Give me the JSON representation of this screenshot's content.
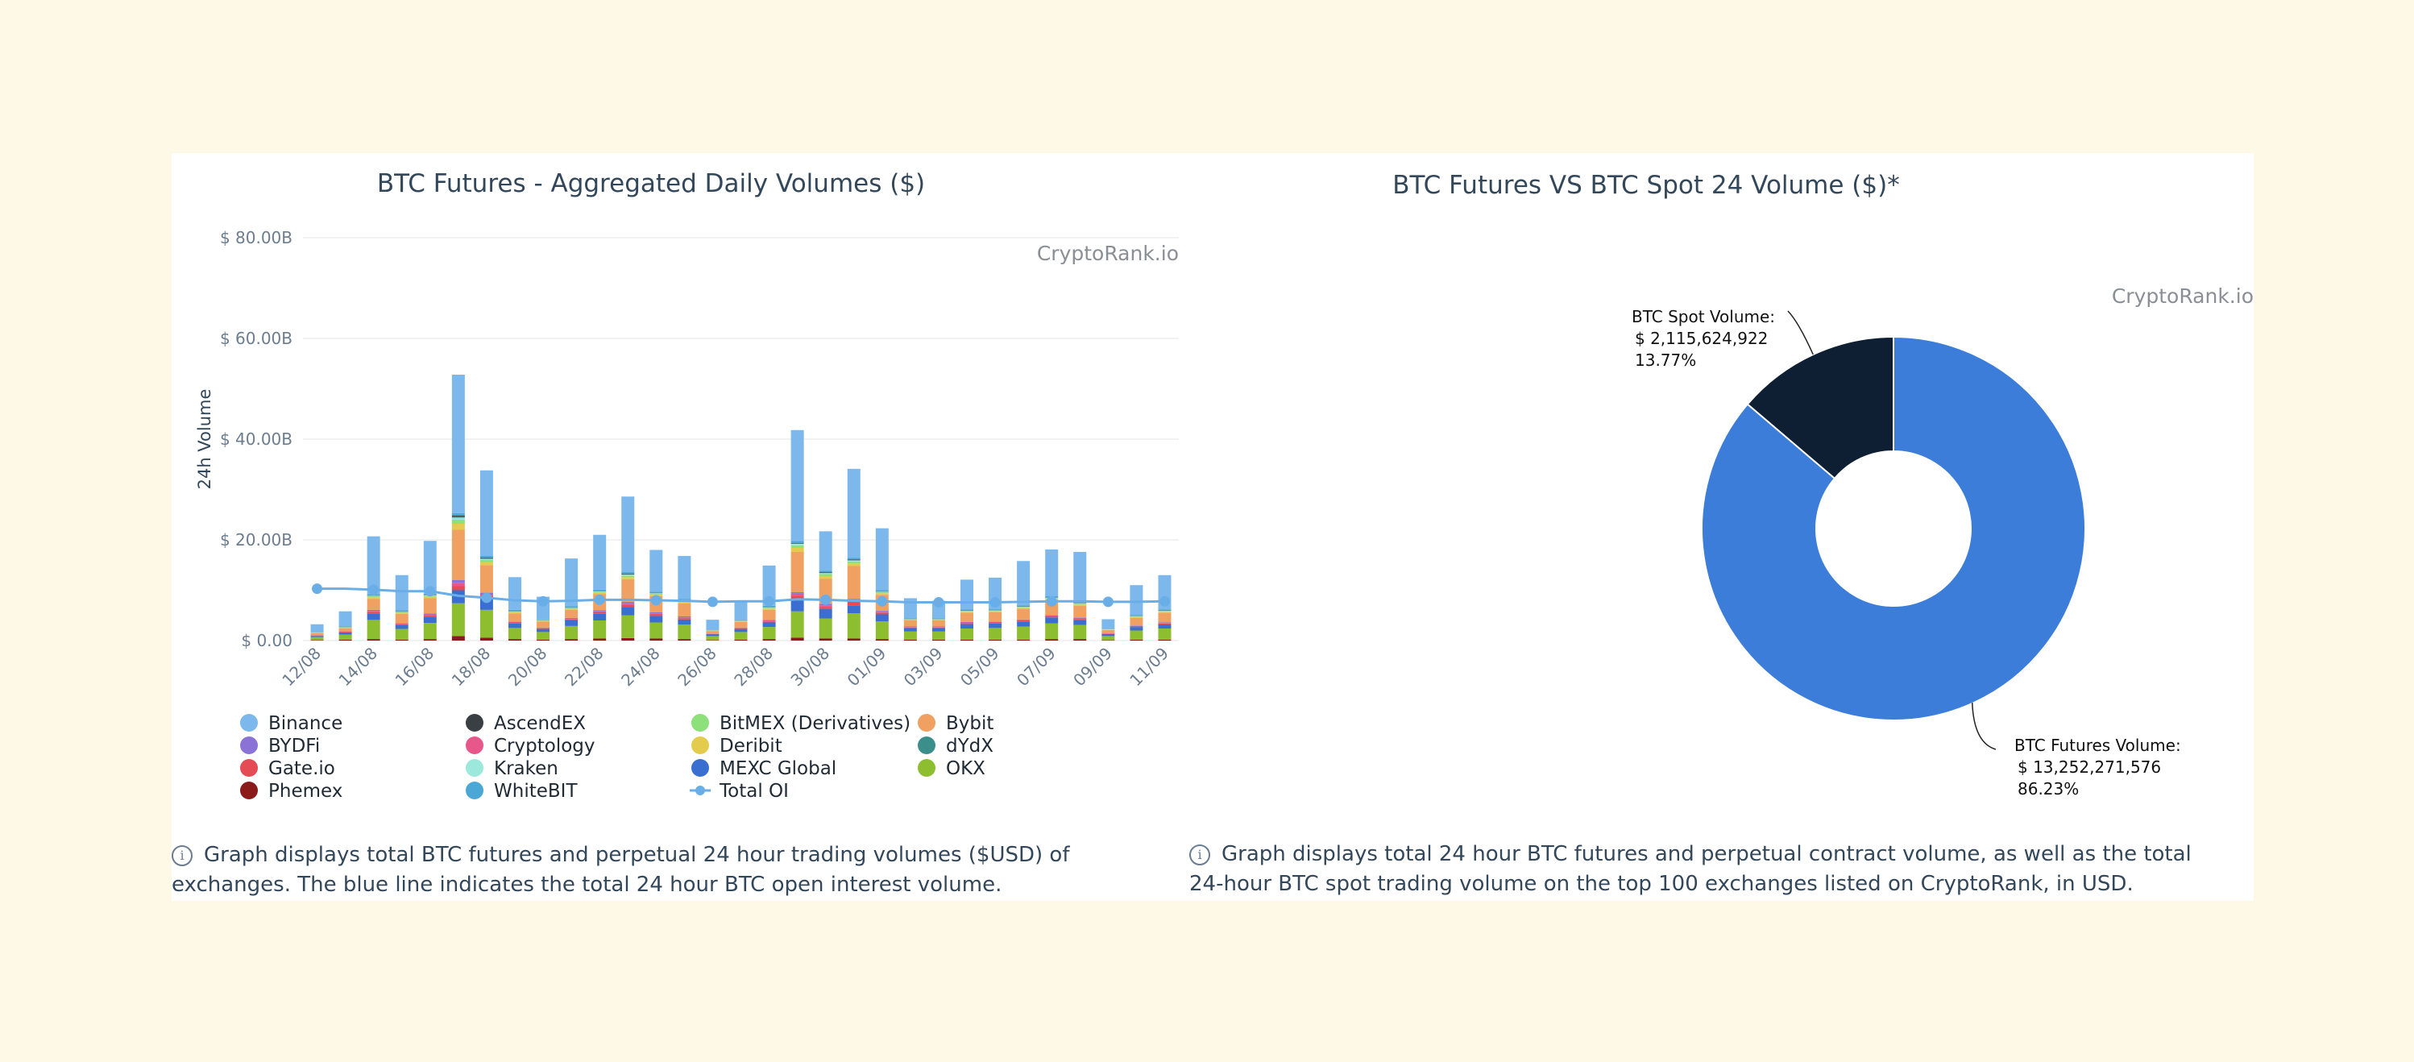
{
  "chart_data": [
    {
      "type": "bar",
      "stacked": true,
      "title": "BTC Futures - Aggregated Daily Volumes ($)",
      "ylabel": "24h Volume",
      "credit": "CryptoRank.io",
      "ylim": [
        0,
        80
      ],
      "yticks": [
        "$ 0.00",
        "$ 20.00B",
        "$ 40.00B",
        "$ 60.00B",
        "$ 80.00B"
      ],
      "grid": true,
      "categories": [
        "12/08",
        "13/08",
        "14/08",
        "15/08",
        "16/08",
        "17/08",
        "18/08",
        "19/08",
        "20/08",
        "21/08",
        "22/08",
        "23/08",
        "24/08",
        "25/08",
        "26/08",
        "27/08",
        "28/08",
        "29/08",
        "30/08",
        "31/08",
        "01/09",
        "02/09",
        "03/09",
        "04/09",
        "05/09",
        "06/09",
        "07/09",
        "08/09",
        "09/09",
        "10/09",
        "11/09"
      ],
      "xtick_labels": [
        "12/08",
        "14/08",
        "16/08",
        "18/08",
        "20/08",
        "22/08",
        "24/08",
        "26/08",
        "28/08",
        "30/08",
        "01/09",
        "03/09",
        "05/09",
        "07/09",
        "09/09",
        "11/09"
      ],
      "series": [
        {
          "name": "Phemex",
          "color": "#8b1a1a",
          "values": [
            0.1,
            0.2,
            0.3,
            0.2,
            0.3,
            0.9,
            0.6,
            0.3,
            0.2,
            0.3,
            0.4,
            0.5,
            0.4,
            0.3,
            0.1,
            0.2,
            0.3,
            0.6,
            0.4,
            0.4,
            0.3,
            0.2,
            0.2,
            0.2,
            0.2,
            0.2,
            0.3,
            0.3,
            0.1,
            0.2,
            0.2
          ]
        },
        {
          "name": "OKX",
          "color": "#8dbe2f",
          "values": [
            0.6,
            1.0,
            3.8,
            2.1,
            3.2,
            6.5,
            5.5,
            2.2,
            1.5,
            2.6,
            3.6,
            4.5,
            3.2,
            2.9,
            0.8,
            1.5,
            2.4,
            5.2,
            4.0,
            5.0,
            3.5,
            1.6,
            1.6,
            2.2,
            2.3,
            2.6,
            3.1,
            2.8,
            0.8,
            1.8,
            2.2
          ]
        },
        {
          "name": "MEXC Global",
          "color": "#3a6fd1",
          "values": [
            0.2,
            0.4,
            1.3,
            0.8,
            1.2,
            2.6,
            2.2,
            0.9,
            0.6,
            1.1,
            1.3,
            1.7,
            1.3,
            1.0,
            0.3,
            0.6,
            0.9,
            2.6,
            1.9,
            1.6,
            1.4,
            0.7,
            0.7,
            0.9,
            0.9,
            1.0,
            1.2,
            1.0,
            0.4,
            0.7,
            0.8
          ]
        },
        {
          "name": "Gate.io",
          "color": "#e54b55",
          "values": [
            0.1,
            0.1,
            0.3,
            0.2,
            0.3,
            0.8,
            0.5,
            0.2,
            0.1,
            0.2,
            0.3,
            0.4,
            0.3,
            0.2,
            0.1,
            0.1,
            0.2,
            0.5,
            0.4,
            0.8,
            0.3,
            0.1,
            0.1,
            0.2,
            0.2,
            0.2,
            0.2,
            0.2,
            0.1,
            0.1,
            0.2
          ]
        },
        {
          "name": "Cryptology",
          "color": "#e8578a",
          "values": [
            0.05,
            0.1,
            0.2,
            0.1,
            0.2,
            0.6,
            0.4,
            0.1,
            0.1,
            0.2,
            0.2,
            0.3,
            0.2,
            0.2,
            0.05,
            0.1,
            0.2,
            0.4,
            0.3,
            0.3,
            0.2,
            0.1,
            0.1,
            0.1,
            0.1,
            0.1,
            0.2,
            0.2,
            0.05,
            0.1,
            0.1
          ]
        },
        {
          "name": "BYDFi",
          "color": "#8a72d6",
          "values": [
            0.05,
            0.1,
            0.2,
            0.1,
            0.2,
            0.6,
            0.3,
            0.1,
            0.1,
            0.1,
            0.2,
            0.3,
            0.2,
            0.2,
            0.05,
            0.1,
            0.1,
            0.3,
            0.3,
            0.2,
            0.2,
            0.1,
            0.1,
            0.1,
            0.1,
            0.1,
            0.1,
            0.1,
            0.05,
            0.1,
            0.1
          ]
        },
        {
          "name": "Bybit",
          "color": "#f0a060",
          "values": [
            0.4,
            0.5,
            2.2,
            1.8,
            3.0,
            10.0,
            5.5,
            1.6,
            1.2,
            1.6,
            3.2,
            4.5,
            3.2,
            2.6,
            0.5,
            1.1,
            2.0,
            8.0,
            5.0,
            6.5,
            3.2,
            1.2,
            1.2,
            1.8,
            1.8,
            2.1,
            2.8,
            2.3,
            0.6,
            1.5,
            1.9
          ]
        },
        {
          "name": "Deribit",
          "color": "#e3cc4d",
          "values": [
            0.05,
            0.1,
            0.3,
            0.2,
            0.3,
            1.2,
            0.6,
            0.2,
            0.1,
            0.2,
            0.3,
            0.4,
            0.3,
            0.3,
            0.05,
            0.1,
            0.2,
            0.8,
            0.5,
            0.5,
            0.3,
            0.1,
            0.1,
            0.2,
            0.2,
            0.2,
            0.3,
            0.2,
            0.05,
            0.2,
            0.2
          ]
        },
        {
          "name": "BitMEX (Derivatives)",
          "color": "#8ee07a",
          "values": [
            0.05,
            0.1,
            0.2,
            0.1,
            0.2,
            0.8,
            0.4,
            0.1,
            0.1,
            0.1,
            0.2,
            0.3,
            0.2,
            0.2,
            0.05,
            0.1,
            0.2,
            0.5,
            0.4,
            0.4,
            0.2,
            0.1,
            0.1,
            0.1,
            0.1,
            0.1,
            0.2,
            0.2,
            0.05,
            0.1,
            0.1
          ]
        },
        {
          "name": "Kraken",
          "color": "#9de8dc",
          "values": [
            0.05,
            0.05,
            0.1,
            0.1,
            0.1,
            0.4,
            0.2,
            0.1,
            0.05,
            0.1,
            0.1,
            0.2,
            0.1,
            0.1,
            0.05,
            0.05,
            0.1,
            0.3,
            0.2,
            0.2,
            0.1,
            0.05,
            0.05,
            0.1,
            0.1,
            0.1,
            0.1,
            0.1,
            0.05,
            0.05,
            0.1
          ]
        },
        {
          "name": "dYdX",
          "color": "#3a8f8a",
          "values": [
            0.02,
            0.03,
            0.05,
            0.05,
            0.05,
            0.2,
            0.1,
            0.05,
            0.03,
            0.05,
            0.05,
            0.1,
            0.05,
            0.05,
            0.02,
            0.03,
            0.05,
            0.1,
            0.1,
            0.1,
            0.05,
            0.03,
            0.03,
            0.05,
            0.05,
            0.05,
            0.05,
            0.05,
            0.02,
            0.03,
            0.05
          ]
        },
        {
          "name": "AscendEX",
          "color": "#3a3f44",
          "values": [
            0.02,
            0.03,
            0.05,
            0.05,
            0.05,
            0.2,
            0.1,
            0.05,
            0.03,
            0.05,
            0.05,
            0.1,
            0.05,
            0.05,
            0.02,
            0.03,
            0.05,
            0.1,
            0.1,
            0.1,
            0.05,
            0.03,
            0.03,
            0.05,
            0.05,
            0.05,
            0.05,
            0.05,
            0.02,
            0.03,
            0.05
          ]
        },
        {
          "name": "WhiteBIT",
          "color": "#4ba8d6",
          "values": [
            0.05,
            0.1,
            0.2,
            0.2,
            0.2,
            0.5,
            0.4,
            0.2,
            0.1,
            0.2,
            0.2,
            0.3,
            0.2,
            0.2,
            0.05,
            0.1,
            0.2,
            0.4,
            0.3,
            0.3,
            0.2,
            0.1,
            0.1,
            0.2,
            0.2,
            0.2,
            0.2,
            0.2,
            0.05,
            0.2,
            0.2
          ]
        },
        {
          "name": "Binance",
          "color": "#7cb8ec",
          "values": [
            1.5,
            3.0,
            11.5,
            7.0,
            10.5,
            27.5,
            17.0,
            6.5,
            4.5,
            9.5,
            10.9,
            15.0,
            8.3,
            8.5,
            2.0,
            3.6,
            8.0,
            22.0,
            7.8,
            17.7,
            12.3,
            4.0,
            3.5,
            5.9,
            6.2,
            8.8,
            9.3,
            9.9,
            1.9,
            5.9,
            6.8
          ]
        }
      ],
      "line_series": {
        "name": "Total OI",
        "color": "#6aaee8",
        "values": [
          10.3,
          10.3,
          10.1,
          9.8,
          9.8,
          8.9,
          8.5,
          8.0,
          7.8,
          7.9,
          8.1,
          8.1,
          8.0,
          7.9,
          7.7,
          7.8,
          7.8,
          8.2,
          8.1,
          7.9,
          7.8,
          7.6,
          7.6,
          7.6,
          7.6,
          7.7,
          7.8,
          7.8,
          7.7,
          7.7,
          7.8
        ]
      },
      "legend": {
        "placement": "bottom",
        "entries": [
          {
            "name": "Binance",
            "color": "#7cb8ec"
          },
          {
            "name": "AscendEX",
            "color": "#3a3f44"
          },
          {
            "name": "BitMEX (Derivatives)",
            "color": "#8ee07a"
          },
          {
            "name": "Bybit",
            "color": "#f0a060"
          },
          {
            "name": "BYDFi",
            "color": "#8a72d6"
          },
          {
            "name": "Cryptology",
            "color": "#e8578a"
          },
          {
            "name": "Deribit",
            "color": "#e3cc4d"
          },
          {
            "name": "dYdX",
            "color": "#3a8f8a"
          },
          {
            "name": "Gate.io",
            "color": "#e54b55"
          },
          {
            "name": "Kraken",
            "color": "#9de8dc"
          },
          {
            "name": "MEXC Global",
            "color": "#3a6fd1"
          },
          {
            "name": "OKX",
            "color": "#8dbe2f"
          },
          {
            "name": "Phemex",
            "color": "#8b1a1a"
          },
          {
            "name": "WhiteBIT",
            "color": "#4ba8d6"
          },
          {
            "name": "Total OI",
            "color": "#6aaee8",
            "line": true
          }
        ]
      }
    },
    {
      "type": "pie",
      "donut": true,
      "title": "BTC Futures VS BTC Spot 24 Volume ($)*",
      "credit": "CryptoRank.io",
      "slices": [
        {
          "name": "BTC Futures Volume:",
          "value": 13252271576,
          "value_label": "$ 13,252,271,576",
          "percent": 86.23,
          "percent_label": "86.23%",
          "color": "#3b7dd8"
        },
        {
          "name": "BTC Spot Volume:",
          "value": 2115624922,
          "value_label": "$ 2,115,624,922",
          "percent": 13.77,
          "percent_label": "13.77%",
          "color": "#0e1f33"
        }
      ]
    }
  ],
  "captions": {
    "left": "Graph displays total BTC futures and perpetual 24 hour trading volumes ($USD) of exchanges. The blue line indicates the total 24 hour BTC open interest volume.",
    "right": "Graph displays total 24 hour BTC futures and perpetual contract volume, as well as the total 24-hour BTC spot trading volume on the top 100 exchanges listed on CryptoRank, in USD."
  },
  "info_icon_glyph": "i"
}
